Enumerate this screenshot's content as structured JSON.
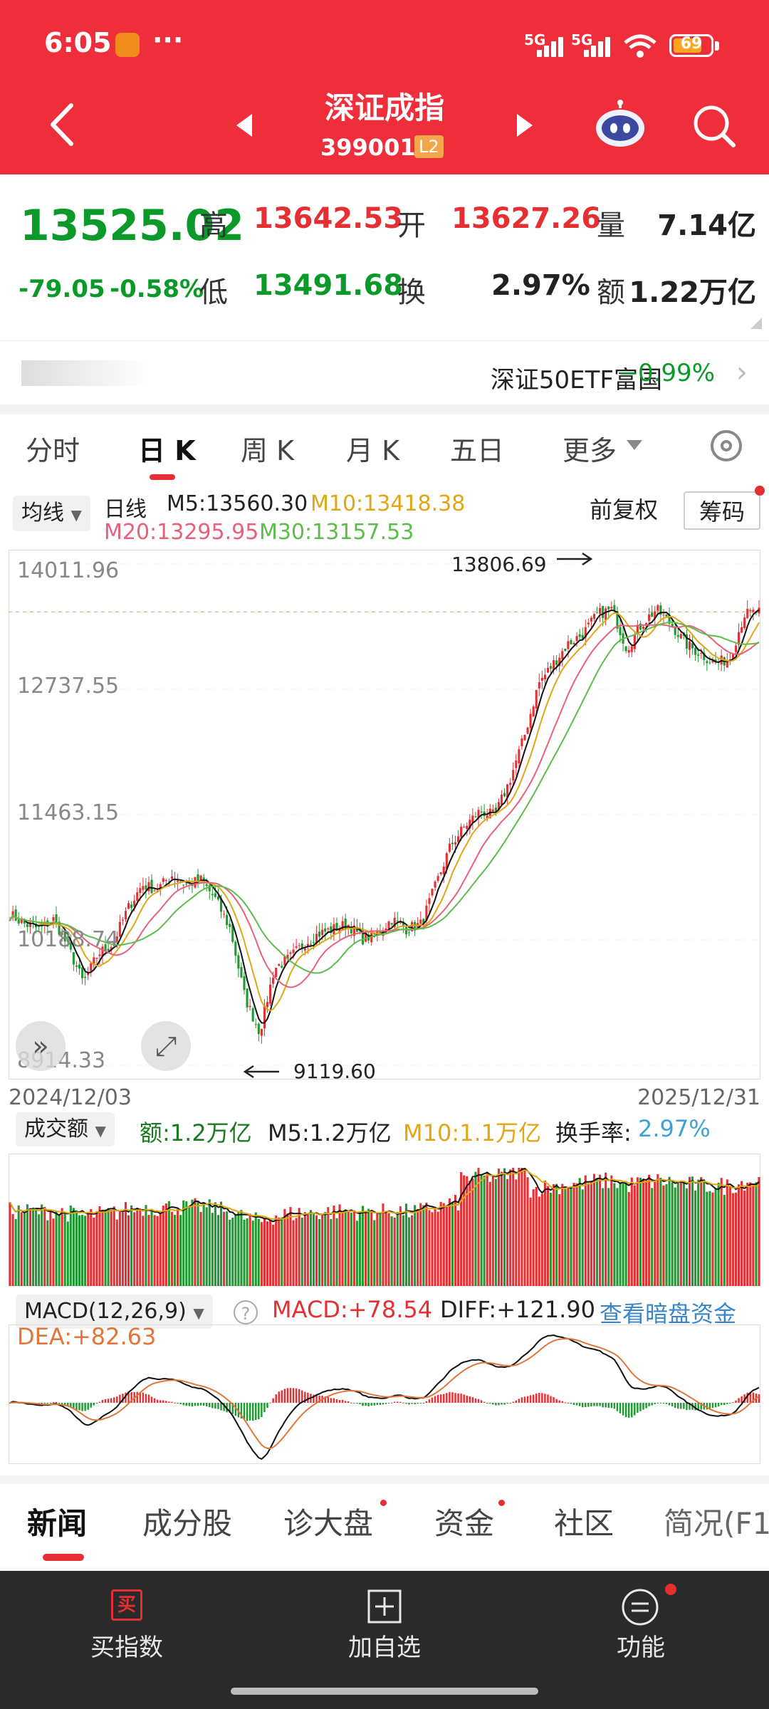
{
  "status_bar": {
    "time": "6:05",
    "net1": "5G",
    "net2": "5G",
    "battery": "69"
  },
  "header": {
    "title": "深证成指",
    "code": "399001",
    "level": "L2"
  },
  "quote": {
    "price": "13525.02",
    "change": "-79.05",
    "change_pct": "-0.58%",
    "high_label": "高",
    "high": "13642.53",
    "open_label": "开",
    "open": "13627.26",
    "vol_label": "量",
    "vol": "7.14亿",
    "low_label": "低",
    "low": "13491.68",
    "turn_label": "换",
    "turn": "2.97%",
    "amt_label": "额",
    "amt": "1.22万亿"
  },
  "etf": {
    "label": "深证50ETF富国",
    "value": "−0.99%"
  },
  "tabs": [
    "分时",
    "日 K",
    "周 K",
    "月 K",
    "五日",
    "更多"
  ],
  "chart_header": {
    "ma_pill": "均线",
    "period": "日线",
    "m5": "M5:13560.30",
    "m10": "M10:13418.38",
    "m20": "M20:13295.95",
    "m30": "M30:13157.53",
    "adj": "前复权",
    "chips": "筹码"
  },
  "price_axis": [
    "14011.96",
    "12737.55",
    "11463.15",
    "10188.74",
    "8914.33"
  ],
  "annotations": {
    "max": "13806.69",
    "min": "9119.60"
  },
  "dates": {
    "start": "2024/12/03",
    "end": "2025/12/31"
  },
  "volume_header": {
    "pill": "成交额",
    "amt": "额:1.2万亿",
    "m5": "M5:1.2万亿",
    "m10": "M10:1.1万亿",
    "turn_label": "换手率:",
    "turn": "2.97%"
  },
  "macd_header": {
    "pill": "MACD(12,26,9)",
    "help": "?",
    "macd": "MACD:+78.54",
    "diff": "DIFF:+121.90",
    "dea": "DEA:+82.63",
    "link": "查看暗盘资金"
  },
  "news_tabs": [
    "新闻",
    "成分股",
    "诊大盘",
    "资金",
    "社区",
    "简况(F1"
  ],
  "bottom": {
    "buy_icon": "买",
    "buy": "买指数",
    "add": "加自选",
    "func": "功能"
  },
  "chart_data": {
    "type": "candlestick",
    "x_range": [
      "2024/12/03",
      "2025/12/31"
    ],
    "y_range": [
      8914.33,
      14011.96
    ],
    "y_ticks": [
      14011.96,
      12737.55,
      11463.15,
      10188.74,
      8914.33
    ],
    "close_path": [
      10450,
      10350,
      10300,
      10400,
      10100,
      9750,
      10050,
      10150,
      10500,
      10750,
      10700,
      10850,
      10750,
      10800,
      10600,
      10300,
      9600,
      9250,
      9900,
      10000,
      10150,
      10250,
      10300,
      10350,
      10200,
      10250,
      10400,
      10300,
      10350,
      10750,
      11150,
      11350,
      11500,
      11450,
      11800,
      12250,
      12800,
      13000,
      13200,
      13300,
      13500,
      13550,
      13150,
      13400,
      13550,
      13400,
      13200,
      13100,
      13000,
      13050,
      13500,
      13525
    ],
    "extremes": {
      "max": 13806.69,
      "min": 9119.6
    },
    "last": {
      "m5": 13560.3,
      "m10": 13418.38,
      "m20": 13295.95,
      "m30": 13157.53
    },
    "volume": {
      "amount": "1.2万亿",
      "m5": "1.2万亿",
      "m10": "1.1万亿",
      "turnover": "2.97%"
    },
    "macd": {
      "macd": 78.54,
      "diff": 121.9,
      "dea": 82.63
    }
  },
  "colors": {
    "up": "#e52f33",
    "down": "#1f9a31",
    "m5": "#111111",
    "m10": "#e2a516",
    "m20": "#e8607a",
    "m30": "#5cbd4b"
  }
}
